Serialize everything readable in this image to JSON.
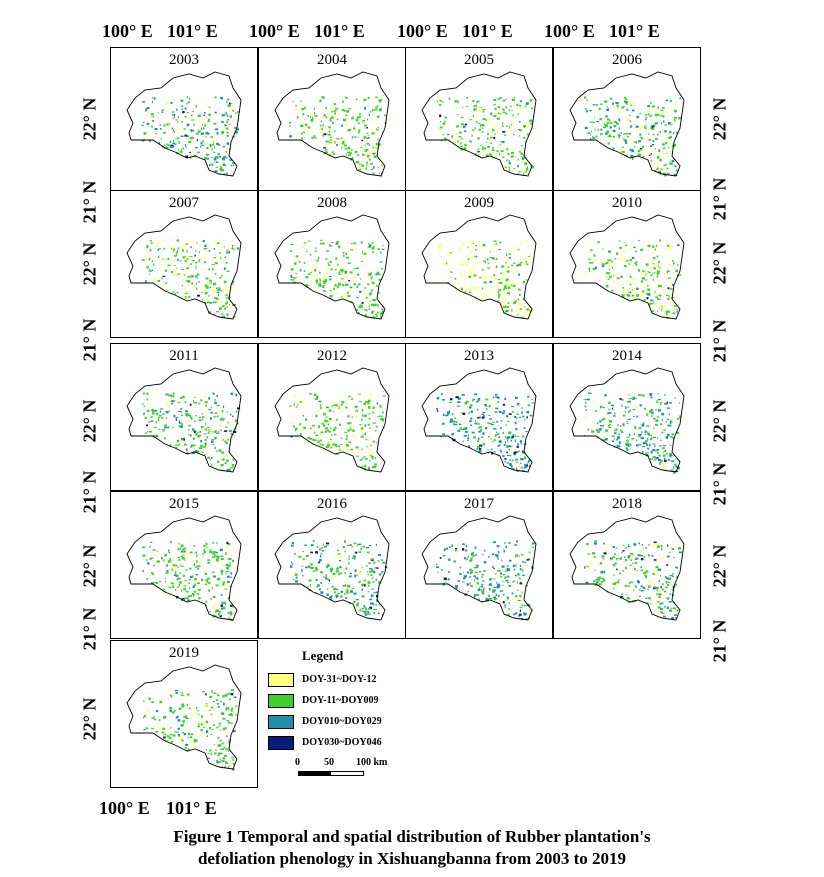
{
  "axes": {
    "lon_ticks": [
      "100° E",
      "101° E"
    ],
    "lat_ticks": [
      "22° N",
      "21° N"
    ]
  },
  "panels": [
    {
      "year": "2003",
      "mix": [
        0.1,
        0.55,
        0.3,
        0.05
      ]
    },
    {
      "year": "2004",
      "mix": [
        0.3,
        0.6,
        0.08,
        0.02
      ]
    },
    {
      "year": "2005",
      "mix": [
        0.25,
        0.65,
        0.08,
        0.02
      ]
    },
    {
      "year": "2006",
      "mix": [
        0.15,
        0.55,
        0.27,
        0.03
      ]
    },
    {
      "year": "2007",
      "mix": [
        0.3,
        0.6,
        0.09,
        0.01
      ]
    },
    {
      "year": "2008",
      "mix": [
        0.25,
        0.65,
        0.09,
        0.01
      ]
    },
    {
      "year": "2009",
      "mix": [
        0.6,
        0.35,
        0.05,
        0.0
      ]
    },
    {
      "year": "2010",
      "mix": [
        0.35,
        0.55,
        0.09,
        0.01
      ]
    },
    {
      "year": "2011",
      "mix": [
        0.1,
        0.6,
        0.27,
        0.03
      ]
    },
    {
      "year": "2012",
      "mix": [
        0.35,
        0.6,
        0.05,
        0.0
      ]
    },
    {
      "year": "2013",
      "mix": [
        0.05,
        0.3,
        0.55,
        0.1
      ]
    },
    {
      "year": "2014",
      "mix": [
        0.05,
        0.4,
        0.5,
        0.05
      ]
    },
    {
      "year": "2015",
      "mix": [
        0.1,
        0.75,
        0.13,
        0.02
      ]
    },
    {
      "year": "2016",
      "mix": [
        0.1,
        0.45,
        0.4,
        0.05
      ]
    },
    {
      "year": "2017",
      "mix": [
        0.05,
        0.35,
        0.55,
        0.05
      ]
    },
    {
      "year": "2018",
      "mix": [
        0.2,
        0.45,
        0.3,
        0.05
      ]
    },
    {
      "year": "2019",
      "mix": [
        0.2,
        0.65,
        0.13,
        0.02
      ]
    }
  ],
  "legend": {
    "title": "Legend",
    "items": [
      {
        "label": "DOY-31~DOY-12",
        "color": "#ffff80"
      },
      {
        "label": "DOY-11~DOY009",
        "color": "#3ecf2c"
      },
      {
        "label": "DOY010~DOY029",
        "color": "#1e90a8"
      },
      {
        "label": "DOY030~DOY046",
        "color": "#0c1a78"
      }
    ]
  },
  "scale_bar": {
    "labels": [
      "0",
      "50",
      "100 km"
    ]
  },
  "caption": {
    "line1": "Figure 1  Temporal and spatial distribution of Rubber plantation's",
    "line2": "defoliation phenology in Xishuangbanna from 2003 to 2019"
  }
}
